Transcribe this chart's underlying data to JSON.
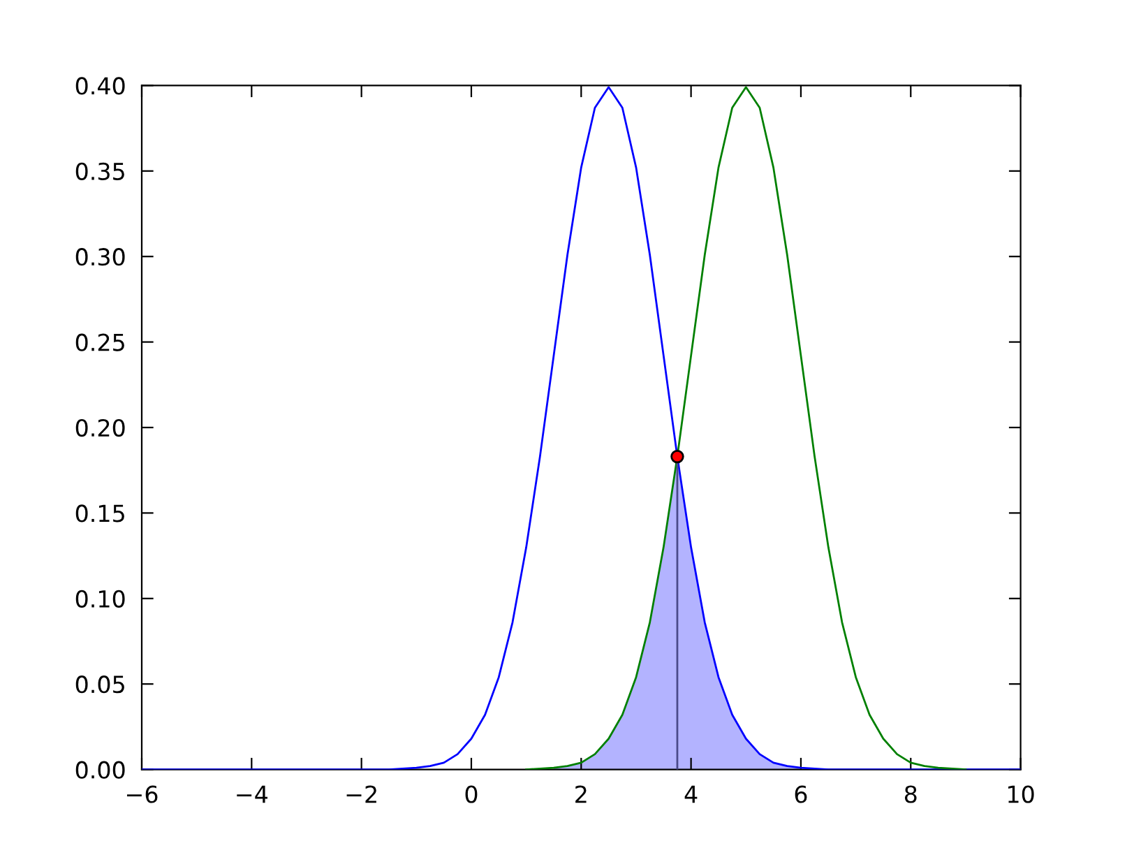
{
  "chart_data": {
    "type": "line",
    "xlim": [
      -6,
      10
    ],
    "ylim": [
      0,
      0.4
    ],
    "xticks": [
      {
        "value": -6,
        "label": "−6"
      },
      {
        "value": -4,
        "label": "−4"
      },
      {
        "value": -2,
        "label": "−2"
      },
      0,
      2,
      4,
      6,
      8,
      10
    ],
    "yticks": [
      {
        "value": 0,
        "label": "0.00"
      },
      {
        "value": 0.05,
        "label": "0.05"
      },
      {
        "value": 0.1,
        "label": "0.10"
      },
      {
        "value": 0.15,
        "label": "0.15"
      },
      {
        "value": 0.2,
        "label": "0.20"
      },
      {
        "value": 0.25,
        "label": "0.25"
      },
      {
        "value": 0.3,
        "label": "0.30"
      },
      {
        "value": 0.35,
        "label": "0.35"
      },
      {
        "value": 0.4,
        "label": "0.40"
      }
    ],
    "grid": false,
    "legend": false,
    "series": [
      {
        "type": "area",
        "color": "#b3b3ff",
        "x": [
          1.5,
          1.75,
          2,
          2.25,
          2.5,
          2.75,
          3,
          3.25,
          3.5,
          3.75,
          4,
          4.25,
          4.5,
          4.75,
          5,
          5.25,
          5.5,
          5.75,
          6
        ],
        "values": [
          0.001,
          0.002,
          0.004,
          0.009,
          0.018,
          0.032,
          0.054,
          0.086,
          0.13,
          0.183,
          0.13,
          0.086,
          0.054,
          0.032,
          0.018,
          0.009,
          0.004,
          0.002,
          0.001
        ]
      },
      {
        "color": "#0000ff",
        "x": [
          -6,
          -1.5,
          -1,
          -0.75,
          -0.5,
          -0.25,
          0,
          0.25,
          0.5,
          0.75,
          1,
          1.25,
          1.5,
          1.75,
          2,
          2.25,
          2.5,
          2.75,
          3,
          3.25,
          3.5,
          3.75,
          4,
          4.25,
          4.5,
          4.75,
          5,
          5.25,
          5.5,
          5.75,
          6,
          6.5,
          10
        ],
        "values": [
          0,
          0,
          0.001,
          0.002,
          0.004,
          0.009,
          0.018,
          0.032,
          0.054,
          0.086,
          0.13,
          0.183,
          0.242,
          0.301,
          0.352,
          0.387,
          0.399,
          0.387,
          0.352,
          0.301,
          0.242,
          0.183,
          0.13,
          0.086,
          0.054,
          0.032,
          0.018,
          0.009,
          0.004,
          0.002,
          0.001,
          0,
          0
        ]
      },
      {
        "color": "#008000",
        "x": [
          1,
          1.5,
          1.75,
          2,
          2.25,
          2.5,
          2.75,
          3,
          3.25,
          3.5,
          3.75,
          4,
          4.25,
          4.5,
          4.75,
          5,
          5.25,
          5.5,
          5.75,
          6,
          6.25,
          6.5,
          6.75,
          7,
          7.25,
          7.5,
          7.75,
          8,
          8.25,
          8.5,
          9
        ],
        "values": [
          0,
          0.001,
          0.002,
          0.004,
          0.009,
          0.018,
          0.032,
          0.054,
          0.086,
          0.13,
          0.183,
          0.242,
          0.301,
          0.352,
          0.387,
          0.399,
          0.387,
          0.352,
          0.301,
          0.242,
          0.183,
          0.13,
          0.086,
          0.054,
          0.032,
          0.018,
          0.009,
          0.004,
          0.002,
          0.001,
          0
        ]
      },
      {
        "color": "#4a4a8a",
        "x": [
          3.75,
          3.75
        ],
        "values": [
          0,
          0.183
        ]
      },
      {
        "type": "scatter",
        "color": "#ff0000",
        "marker": "circle",
        "x": [
          3.75
        ],
        "values": [
          0.183
        ]
      }
    ]
  }
}
